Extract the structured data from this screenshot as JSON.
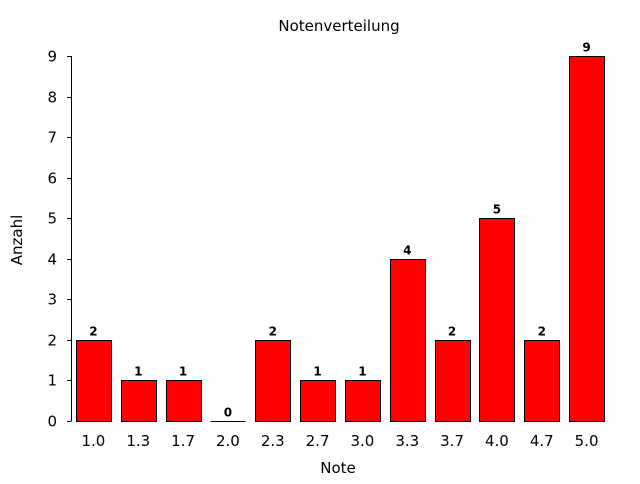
{
  "chart_data": {
    "type": "bar",
    "title": "Notenverteilung",
    "xlabel": "Note",
    "ylabel": "Anzahl",
    "categories": [
      "1.0",
      "1.3",
      "1.7",
      "2.0",
      "2.3",
      "2.7",
      "3.0",
      "3.3",
      "3.7",
      "4.0",
      "4.7",
      "5.0"
    ],
    "values": [
      2,
      1,
      1,
      0,
      2,
      1,
      1,
      4,
      2,
      5,
      2,
      9
    ],
    "data_labels": [
      "2",
      "1",
      "1",
      "0",
      "2",
      "1",
      "1",
      "4",
      "2",
      "5",
      "2",
      "9"
    ],
    "yticks": [
      "0",
      "1",
      "2",
      "3",
      "4",
      "5",
      "6",
      "7",
      "8",
      "9"
    ],
    "ylim": [
      0,
      9
    ],
    "grid": false,
    "legend": "none",
    "bar_color": "#ff0000",
    "bar_edge_color": "#000000",
    "axis_color": "#000000"
  }
}
